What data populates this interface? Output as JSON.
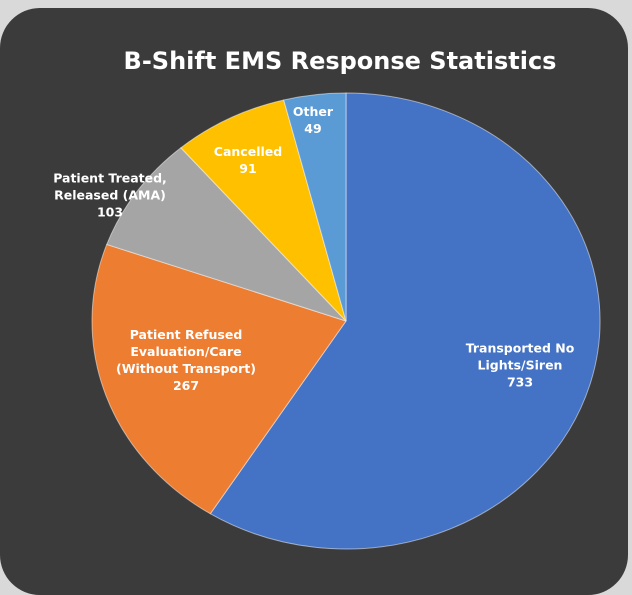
{
  "chart_data": {
    "type": "pie",
    "title": "B-Shift EMS Response Statistics",
    "categories": [
      "Transported No Lights/Siren",
      "Patient Refused Evaluation/Care (Without Transport)",
      "Patient Treated, Released (AMA)",
      "Cancelled",
      "Other"
    ],
    "values": [
      733,
      267,
      103,
      91,
      49
    ],
    "colors": [
      "#4472c4",
      "#ed7d31",
      "#a5a5a5",
      "#ffc000",
      "#5b9bd5"
    ]
  }
}
